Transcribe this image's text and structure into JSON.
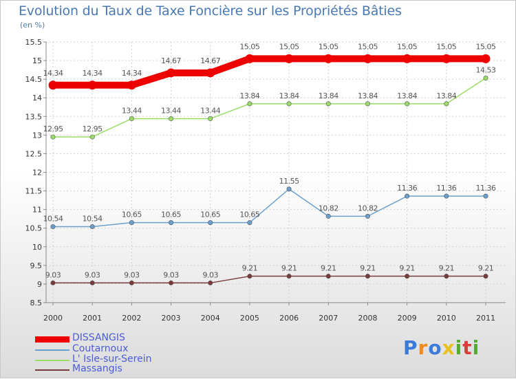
{
  "chart_data": {
    "type": "line",
    "title": "Evolution du Taux de Taxe Foncière sur les Propriétés Bâties",
    "subtitle": "(en %)",
    "categories": [
      "2000",
      "2001",
      "2002",
      "2003",
      "2004",
      "2005",
      "2006",
      "2007",
      "2008",
      "2009",
      "2010",
      "2011"
    ],
    "ylim": [
      8.5,
      15.5
    ],
    "yticks": [
      "8.5",
      "9",
      "9.5",
      "10",
      "10.5",
      "11",
      "11.5",
      "12",
      "12.5",
      "13",
      "13.5",
      "14",
      "14.5",
      "15",
      "15.5"
    ],
    "grid": true,
    "series": [
      {
        "name": "DISSANGIS",
        "color": "#ee0000",
        "values": [
          14.34,
          14.34,
          14.34,
          14.67,
          14.67,
          15.05,
          15.05,
          15.05,
          15.05,
          15.05,
          15.05,
          15.05
        ],
        "labels": [
          "14.34",
          "14.34",
          "14.34",
          "14.67",
          "14.67",
          "15.05",
          "15.05",
          "15.05",
          "15.05",
          "15.05",
          "15.05",
          "15.05"
        ]
      },
      {
        "name": "Coutarnoux",
        "color": "#6aa0cf",
        "values": [
          10.54,
          10.54,
          10.65,
          10.65,
          10.65,
          10.65,
          11.55,
          10.82,
          10.82,
          11.36,
          11.36,
          11.36
        ],
        "labels": [
          "10.54",
          "10.54",
          "10.65",
          "10.65",
          "10.65",
          "10.65",
          "11.55",
          "10.82",
          "10.82",
          "11.36",
          "11.36",
          "11.36"
        ]
      },
      {
        "name": "L' Isle-sur-Serein",
        "color": "#99dd66",
        "values": [
          12.95,
          12.95,
          13.44,
          13.44,
          13.44,
          13.84,
          13.84,
          13.84,
          13.84,
          13.84,
          13.84,
          14.53
        ],
        "labels": [
          "12.95",
          "12.95",
          "13.44",
          "13.44",
          "13.44",
          "13.84",
          "13.84",
          "13.84",
          "13.84",
          "13.84",
          "13.84",
          "14.53"
        ]
      },
      {
        "name": "Massangis",
        "color": "#7a3a3a",
        "values": [
          9.03,
          9.03,
          9.03,
          9.03,
          9.03,
          9.21,
          9.21,
          9.21,
          9.21,
          9.21,
          9.21,
          9.21
        ],
        "labels": [
          "9.03",
          "9.03",
          "9.03",
          "9.03",
          "9.03",
          "9.21",
          "9.21",
          "9.21",
          "9.21",
          "9.21",
          "9.21",
          "9.21"
        ]
      }
    ]
  },
  "legend": [
    "DISSANGIS",
    "Coutarnoux",
    "L' Isle-sur-Serein",
    "Massangis"
  ],
  "logo": {
    "text": "Proxiti",
    "letters": [
      "P",
      "r",
      "o",
      "x",
      "i",
      "t",
      "i"
    ],
    "colors": [
      "#3a7ad8",
      "#f08a1a",
      "#3a7ad8",
      "#e8c020",
      "#55aa33",
      "#e03a3a",
      "#55aa33"
    ]
  }
}
